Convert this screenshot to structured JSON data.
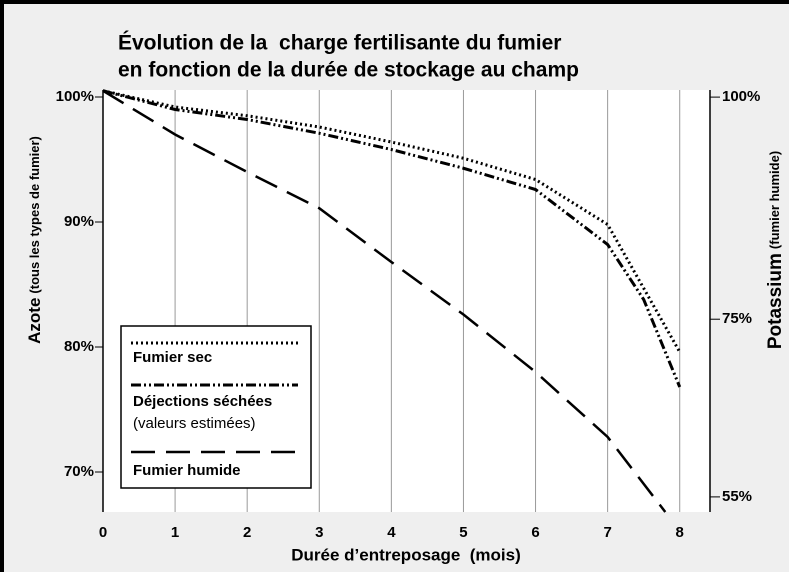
{
  "chart_data": {
    "type": "line",
    "title": [
      "Évolution de la  charge fertilisante du fumier",
      "en fonction de la durée de stockage au champ"
    ],
    "xlabel": "Durée d’entreposage  (mois)",
    "ylabel": "Azote",
    "ylabel_note": "(tous les types de fumier)",
    "y2label": "Potassium",
    "y2label_note": "(fumier humide)",
    "xlim": [
      0,
      8.42
    ],
    "xticks": [
      0,
      1,
      2,
      3,
      4,
      5,
      6,
      7,
      8
    ],
    "ylim": [
      66.8,
      100.56
    ],
    "yticks": [
      {
        "value": 100,
        "label": "100%"
      },
      {
        "value": 90,
        "label": "90%"
      },
      {
        "value": 80,
        "label": "80%"
      },
      {
        "value": 70,
        "label": "70%"
      }
    ],
    "y2lim": [
      53.3,
      100.8
    ],
    "y2ticks": [
      {
        "value": 100,
        "label": "100%"
      },
      {
        "value": 75,
        "label": "75%"
      },
      {
        "value": 55,
        "label": "55%"
      }
    ],
    "grid": true,
    "legend_note": "(valeurs estimées)",
    "series": [
      {
        "name": "Fumier sec",
        "color": "#000000",
        "style": "dotted",
        "x": [
          0,
          1,
          2,
          3,
          4,
          5,
          6,
          7,
          8
        ],
        "values": [
          100.5,
          99.2,
          98.5,
          97.6,
          96.4,
          95.1,
          93.4,
          89.8,
          79.6
        ]
      },
      {
        "name": "Déjections séchées",
        "color": "#000000",
        "style": "dashdot",
        "x": [
          0,
          1,
          2,
          3,
          4,
          5,
          6,
          7,
          7.5,
          8
        ],
        "values": [
          100.5,
          99.0,
          98.2,
          97.1,
          95.8,
          94.3,
          92.6,
          88.2,
          83.8,
          76.8
        ]
      },
      {
        "name": "Fumier humide",
        "color": "#000000",
        "style": "dashed",
        "x": [
          0,
          1,
          2,
          3,
          4,
          5,
          6,
          7,
          7.8
        ],
        "values": [
          100.5,
          97.0,
          94.0,
          91.1,
          86.8,
          82.6,
          78.0,
          72.8,
          66.8
        ]
      }
    ]
  }
}
